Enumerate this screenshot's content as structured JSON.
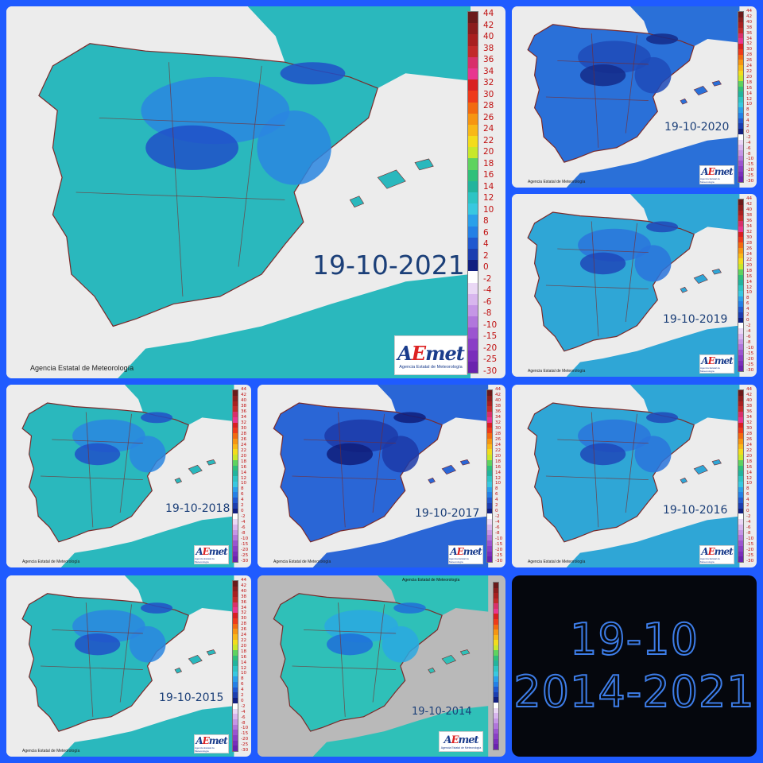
{
  "source_credit": "Agencia Estatal de Meteorología",
  "logo": {
    "brand": "AEmet",
    "subtitle": "Agencia Estatal de Meteorología"
  },
  "legend_ticks": [
    "44",
    "42",
    "40",
    "38",
    "36",
    "34",
    "32",
    "30",
    "28",
    "26",
    "24",
    "22",
    "20",
    "18",
    "16",
    "14",
    "12",
    "10",
    "8",
    "6",
    "4",
    "2",
    "0",
    "-2",
    "-4",
    "-6",
    "-8",
    "-10",
    "-15",
    "-20",
    "-25",
    "-30"
  ],
  "legend_colors": [
    "#6a1a1a",
    "#8b1d1d",
    "#a82020",
    "#c22a2a",
    "#d8306a",
    "#e8368f",
    "#d92020",
    "#ee3a1a",
    "#f26a10",
    "#f69512",
    "#f8b818",
    "#f3dc1c",
    "#c8e82a",
    "#5fd35f",
    "#2fc07a",
    "#22b49d",
    "#2dc4c4",
    "#38c8e0",
    "#2aa0ea",
    "#2480e6",
    "#2058d0",
    "#1c3eb0",
    "#111f80",
    "#ffffff",
    "#ead8f5",
    "#d8b6ee",
    "#c596e6",
    "#b176dc",
    "#9b55d0",
    "#8a3fc6",
    "#7a2ebb",
    "#6a22ae"
  ],
  "maps": [
    {
      "id": "2021",
      "date": "19-10-2021",
      "theme": "teal-blue"
    },
    {
      "id": "2020",
      "date": "19-10-2020",
      "theme": "deep-blue"
    },
    {
      "id": "2019",
      "date": "19-10-2019",
      "theme": "blue"
    },
    {
      "id": "2018",
      "date": "19-10-2018",
      "theme": "teal-blue"
    },
    {
      "id": "2017",
      "date": "19-10-2017",
      "theme": "very-deep-blue"
    },
    {
      "id": "2016",
      "date": "19-10-2016",
      "theme": "blue"
    },
    {
      "id": "2015",
      "date": "19-10-2015",
      "theme": "teal-blue"
    },
    {
      "id": "2014",
      "date": "19-10-2014",
      "theme": "teal"
    }
  ],
  "summary": {
    "line1": "19-10",
    "line2": "2014-2021"
  },
  "colors": {
    "background": "#1f5bff",
    "land_teal": "#2fc0b8",
    "land_blue": "#2a86e0",
    "land_deep": "#1c3ea8",
    "sea": "#ececec",
    "borders": "#7a2a2a",
    "summary_text": "#3d7de8"
  }
}
